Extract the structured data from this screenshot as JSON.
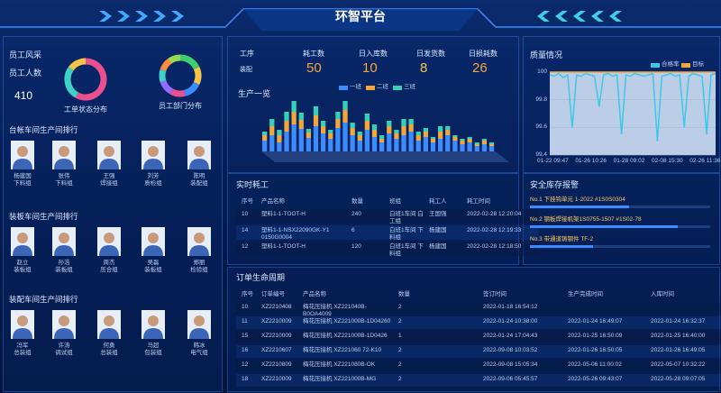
{
  "header": {
    "title": "环智平台"
  },
  "left": {
    "staff_title": "员工风采",
    "staff_count_label": "员工人数",
    "staff_count": 410,
    "donuts": [
      {
        "caption": "工单状态分布",
        "values": [
          58,
          27,
          15
        ],
        "colors": [
          "#e8508f",
          "#3fd0c8",
          "#f3c447"
        ]
      },
      {
        "caption": "员工部门分布",
        "values": [
          18,
          14,
          14,
          12,
          12,
          10,
          10,
          10
        ],
        "colors": [
          "#3ecf6e",
          "#f3c447",
          "#3b8cff",
          "#e8508f",
          "#8f6bff",
          "#3fd0c8",
          "#ff8c3a",
          "#9ad94e"
        ]
      }
    ],
    "rankings": [
      {
        "title": "台帐车间生产间排行",
        "people": [
          {
            "name": "杨建国",
            "team": "下料组"
          },
          {
            "name": "张伟",
            "team": "下料组"
          },
          {
            "name": "王强",
            "team": "焊接组"
          },
          {
            "name": "刘芳",
            "team": "质检组"
          },
          {
            "name": "陈明",
            "team": "装配组"
          }
        ]
      },
      {
        "title": "装板车间生产间排行",
        "people": [
          {
            "name": "赵立",
            "team": "装板组"
          },
          {
            "name": "孙浩",
            "team": "装板组"
          },
          {
            "name": "周杰",
            "team": "压合组"
          },
          {
            "name": "吴磊",
            "team": "装板组"
          },
          {
            "name": "郑丽",
            "team": "检验组"
          }
        ]
      },
      {
        "title": "装配车间生产间排行",
        "people": [
          {
            "name": "冯军",
            "team": "总装组"
          },
          {
            "name": "许涛",
            "team": "调试组"
          },
          {
            "name": "何勇",
            "team": "总装组"
          },
          {
            "name": "马超",
            "team": "包装组"
          },
          {
            "name": "韩冰",
            "team": "电气组"
          }
        ]
      }
    ]
  },
  "kpis": [
    {
      "label": "工序",
      "value": "装配"
    },
    {
      "label": "耗工数",
      "value": 50,
      "color": "#f3a73b"
    },
    {
      "label": "日入库数",
      "value": 10,
      "color": "#f3a73b"
    },
    {
      "label": "日发货数",
      "value": 8,
      "color": "#f3c447"
    },
    {
      "label": "日损耗数",
      "value": 26,
      "color": "#f3a73b"
    }
  ],
  "production": {
    "title": "生产一览",
    "series": [
      {
        "name": "一班",
        "color": "#3b8cff",
        "values": [
          12,
          18,
          10,
          22,
          30,
          25,
          15,
          28,
          20,
          14,
          26,
          32,
          18,
          12,
          24,
          16,
          10,
          20,
          14,
          18,
          22,
          12,
          16,
          10,
          14,
          18,
          12,
          8,
          10,
          6,
          8,
          6
        ]
      },
      {
        "name": "二班",
        "color": "#f3a73b",
        "values": [
          6,
          10,
          8,
          12,
          14,
          10,
          6,
          12,
          8,
          6,
          10,
          14,
          8,
          6,
          10,
          8,
          4,
          8,
          6,
          10,
          8,
          6,
          6,
          4,
          8,
          6,
          4,
          4,
          4,
          2,
          4,
          2
        ]
      },
      {
        "name": "三班",
        "color": "#34d1b8",
        "values": [
          4,
          8,
          6,
          10,
          12,
          8,
          4,
          10,
          6,
          4,
          8,
          10,
          6,
          4,
          8,
          6,
          4,
          6,
          4,
          8,
          6,
          4,
          4,
          2,
          6,
          4,
          2,
          2,
          2,
          2,
          2,
          2
        ]
      }
    ]
  },
  "realtime": {
    "title": "实时耗工",
    "columns": [
      "序号",
      "产品名称",
      "数量",
      "班组",
      "耗工人",
      "耗工时间"
    ],
    "rows": [
      [
        "10",
        "塑料1-1-TOOT-H",
        "240",
        "白班1车间 白工组",
        "王国强",
        "2022-02-28 12:20:04"
      ],
      [
        "14",
        "塑料1-1-NSX22090GK-Y1 0150G0004",
        "6",
        "白班1车间 下料组",
        "杨建国",
        "2022-02-28 12:19:33"
      ],
      [
        "12",
        "塑料1-1-TOOT-H",
        "120",
        "白班1车间 下料组",
        "杨建国",
        "2022-02-28 12:18:50"
      ]
    ]
  },
  "orders": {
    "title": "订单生命周期",
    "columns": [
      "序号",
      "订单编号",
      "产品名称",
      "数量",
      "签订时间",
      "生产完成时间",
      "入库时间"
    ],
    "rows": [
      [
        "10",
        "XZ2210408",
        "梅花压接机 XZ221040B-B0OA4009",
        "2",
        "2022-01-18 16:54:12",
        "",
        ""
      ],
      [
        "11",
        "XZ2210009",
        "梅花压接机 XZ221000B-1D04260",
        "2",
        "2022-01-24 10:38:00",
        "2022-01-24 16:49:07",
        "2022-01-24 16:32:37"
      ],
      [
        "15",
        "XZ2210009",
        "梅花压接机 XZ221000B-1D0426",
        "1",
        "2022-01-24 17:04:43",
        "2022-01-25 16:50:09",
        "2022-01-25 16:40:00"
      ],
      [
        "16",
        "XZ2210607",
        "梅花压接机 XZ221060 72-K10",
        "2",
        "2022-09-08 10:03:52",
        "2022-01-26 16:50:05",
        "2022-01-26 16:49:05"
      ],
      [
        "12",
        "XZ2210809",
        "梅花压接机 XZ221080B-OK",
        "2",
        "2022-09-08 15:05:34",
        "2022-05-06 11:00:02",
        "2022-05-07 10:32:22"
      ],
      [
        "18",
        "XZ2210009",
        "梅花压接机 XZ221000B-MG",
        "2",
        "2022-09-06 05:45:57",
        "2022-05-26 09:43:07",
        "2022-05-28 09:07:05"
      ]
    ]
  },
  "quality": {
    "title": "质量情况",
    "ylim": [
      99.4,
      100
    ],
    "yticks": [
      99.4,
      99.6,
      99.8,
      100
    ],
    "xlabels": [
      "01-22 09:47",
      "01-26 10:26",
      "01-28 09:02",
      "02-08 15:30",
      "02-26 11:36"
    ],
    "series": [
      {
        "name": "合格率",
        "color": "#3fc7e8",
        "values": [
          99.98,
          99.97,
          99.99,
          99.96,
          99.98,
          99.6,
          99.98,
          99.97,
          99.99,
          99.98,
          99.97,
          99.75,
          99.98,
          99.99,
          99.97,
          99.98,
          99.55,
          99.98,
          99.97,
          99.99,
          99.98,
          99.97,
          99.98,
          99.99,
          99.5,
          99.97,
          99.98,
          99.99,
          99.97,
          99.98,
          99.6,
          99.97,
          99.99,
          99.98,
          99.97,
          99.55,
          99.98,
          99.99
        ]
      },
      {
        "name": "目标",
        "color": "#f3a73b",
        "values": [
          100,
          100,
          100,
          100,
          100,
          100,
          100,
          100,
          100,
          100,
          100,
          100,
          100,
          100,
          100,
          100,
          100,
          100,
          100,
          100,
          100,
          100,
          100,
          100,
          100,
          100,
          100,
          100,
          100,
          100,
          100,
          100,
          100,
          100,
          100,
          100,
          100,
          100
        ]
      }
    ]
  },
  "alerts": {
    "title": "安全库存报警",
    "items": [
      {
        "text": "No.1 下挂钩单元 1-2022 #1S0S0304",
        "value": 55
      },
      {
        "text": "No.2 钢板焊接机架1S0755-1507 #1S02-78",
        "value": 82
      },
      {
        "text": "No.3 带通道铸钢件 TF-2",
        "value": 35
      }
    ]
  }
}
